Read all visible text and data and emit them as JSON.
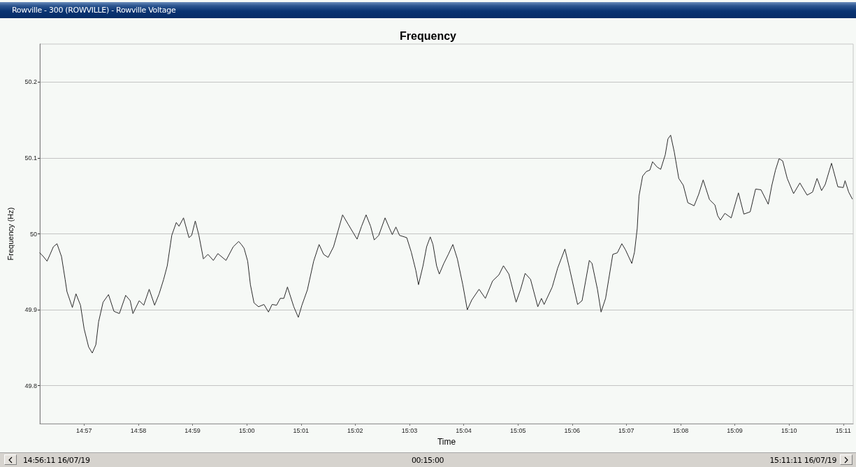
{
  "chart_data": {
    "type": "line",
    "title": "Frequency",
    "xlabel": "Time",
    "ylabel": "Frequency (Hz)",
    "annotations": [
      "Rowville - 300 (ROWVILLE) - Rowville Voltage",
      "14:56:11 16/07/19",
      "00:15:00",
      "15:11:11 16/07/19"
    ],
    "x": [
      "--07-16T14:56:11",
      "--07-16T14:56:15",
      "--07-16T14:56:19",
      "--07-16T14:56:22",
      "--07-16T14:56:26",
      "--07-16T14:56:30",
      "--07-16T14:56:35",
      "--07-16T14:56:39",
      "--07-16T14:56:41",
      "--07-16T14:56:47",
      "--07-16T14:56:51",
      "--07-16T14:56:56",
      "--07-16T14:57:00",
      "--07-16T14:57:05",
      "--07-16T14:57:09",
      "--07-16T14:57:13",
      "--07-16T14:57:16",
      "--07-16T14:57:21",
      "--07-16T14:57:27",
      "--07-16T14:57:33",
      "--07-16T14:57:39",
      "--07-16T14:57:46",
      "--07-16T14:57:51",
      "--07-16T14:57:54",
      "--07-16T14:58:01",
      "--07-16T14:58:06",
      "--07-16T14:58:12",
      "--07-16T14:58:18",
      "--07-16T14:58:23",
      "--07-16T14:58:28",
      "--07-16T14:58:32",
      "--07-16T14:58:37",
      "--07-16T14:58:42",
      "--07-16T14:58:45",
      "--07-16T14:58:50",
      "--07-16T14:58:56",
      "--07-16T14:58:59",
      "--07-16T14:59:03",
      "--07-16T14:59:07",
      "--07-16T14:59:12",
      "--07-16T14:59:17",
      "--07-16T14:59:23",
      "--07-16T14:59:28",
      "--07-16T14:59:37",
      "--07-16T14:59:45",
      "--07-16T14:59:51",
      "--07-16T14:59:54",
      "--07-16T14:59:57",
      "--07-16T15:00:01",
      "--07-16T15:00:04",
      "--07-16T15:00:08",
      "--07-16T15:00:13",
      "--07-16T15:00:19",
      "--07-16T15:00:24",
      "--07-16T15:00:28",
      "--07-16T15:00:33",
      "--07-16T15:00:37",
      "--07-16T15:00:41",
      "--07-16T15:00:45",
      "--07-16T15:00:52",
      "--07-16T15:00:57",
      "--07-16T15:01:01",
      "--07-16T15:01:07",
      "--07-16T15:01:14",
      "--07-16T15:01:20",
      "--07-16T15:01:25",
      "--07-16T15:01:30",
      "--07-16T15:01:36",
      "--07-16T15:01:41",
      "--07-16T15:01:46",
      "--07-16T15:01:52",
      "--07-16T15:01:58",
      "--07-16T15:02:02",
      "--07-16T15:02:07",
      "--07-16T15:02:12",
      "--07-16T15:02:17",
      "--07-16T15:02:21",
      "--07-16T15:02:26",
      "--07-16T15:02:33",
      "--07-16T15:02:38",
      "--07-16T15:02:41",
      "--07-16T15:02:45",
      "--07-16T15:02:49",
      "--07-16T15:02:57",
      "--07-16T15:03:02",
      "--07-16T15:03:07",
      "--07-16T15:03:10",
      "--07-16T15:03:15",
      "--07-16T15:03:19",
      "--07-16T15:03:23",
      "--07-16T15:03:26",
      "--07-16T15:03:30",
      "--07-16T15:03:33",
      "--07-16T15:03:38",
      "--07-16T15:03:43",
      "--07-16T15:03:48",
      "--07-16T15:03:53",
      "--07-16T15:03:59",
      "--07-16T15:04:04",
      "--07-16T15:04:09",
      "--07-16T15:04:17",
      "--07-16T15:04:24",
      "--07-16T15:04:32",
      "--07-16T15:04:39",
      "--07-16T15:04:44",
      "--07-16T15:04:50",
      "--07-16T15:04:58",
      "--07-16T15:05:03",
      "--07-16T15:05:08",
      "--07-16T15:05:14",
      "--07-16T15:05:22",
      "--07-16T15:05:26",
      "--07-16T15:05:29",
      "--07-16T15:05:38",
      "--07-16T15:05:44",
      "--07-16T15:05:52",
      "--07-16T15:05:57",
      "--07-16T15:06:06",
      "--07-16T15:06:11",
      "--07-16T15:06:19",
      "--07-16T15:06:22",
      "--07-16T15:06:28",
      "--07-16T15:06:32",
      "--07-16T15:06:37",
      "--07-16T15:06:45",
      "--07-16T15:06:50",
      "--07-16T15:06:55",
      "--07-16T15:06:59",
      "--07-16T15:07:06",
      "--07-16T15:07:09",
      "--07-16T15:07:12",
      "--07-16T15:07:14",
      "--07-16T15:07:18",
      "--07-16T15:07:22",
      "--07-16T15:07:26",
      "--07-16T15:07:29",
      "--07-16T15:07:34",
      "--07-16T15:07:38",
      "--07-16T15:07:43",
      "--07-16T15:07:46",
      "--07-16T15:07:49",
      "--07-16T15:07:53",
      "--07-16T15:07:58",
      "--07-16T15:08:03",
      "--07-16T15:08:08",
      "--07-16T15:08:15",
      "--07-16T15:08:20",
      "--07-16T15:08:25",
      "--07-16T15:08:32",
      "--07-16T15:08:38",
      "--07-16T15:08:41",
      "--07-16T15:08:44",
      "--07-16T15:08:49",
      "--07-16T15:08:56",
      "--07-16T15:09:04",
      "--07-16T15:09:10",
      "--07-16T15:09:17",
      "--07-16T15:09:23",
      "--07-16T15:09:29",
      "--07-16T15:09:37",
      "--07-16T15:09:41",
      "--07-16T15:09:45",
      "--07-16T15:09:49",
      "--07-16T15:09:53",
      "--07-16T15:09:58",
      "--07-16T15:10:05",
      "--07-16T15:10:12",
      "--07-16T15:10:20",
      "--07-16T15:10:26",
      "--07-16T15:10:31",
      "--07-16T15:10:36",
      "--07-16T15:10:40",
      "--07-16T15:10:47",
      "--07-16T15:10:54",
      "--07-16T15:11:00",
      "--07-16T15:11:02",
      "--07-16T15:11:06",
      "--07-16T15:11:10"
    ],
    "series": [
      {
        "color": "#2b2b2b",
        "values": [
          49.975,
          49.97,
          49.964,
          49.972,
          49.983,
          49.987,
          49.97,
          49.94,
          49.924,
          49.903,
          49.921,
          49.906,
          49.875,
          49.851,
          49.843,
          49.854,
          49.884,
          49.91,
          49.92,
          49.898,
          49.895,
          49.919,
          49.912,
          49.895,
          49.912,
          49.906,
          49.927,
          49.906,
          49.921,
          49.94,
          49.958,
          49.998,
          50.015,
          50.01,
          50.021,
          49.995,
          49.998,
          50.017,
          49.998,
          49.967,
          49.973,
          49.965,
          49.974,
          49.965,
          49.983,
          49.99,
          49.986,
          49.981,
          49.964,
          49.933,
          49.909,
          49.904,
          49.907,
          49.897,
          49.907,
          49.906,
          49.915,
          49.915,
          49.93,
          49.904,
          49.89,
          49.906,
          49.926,
          49.964,
          49.986,
          49.973,
          49.969,
          49.983,
          50.004,
          50.025,
          50.013,
          50.001,
          49.993,
          50.01,
          50.025,
          50.01,
          49.992,
          49.998,
          50.021,
          50.007,
          49.999,
          50.009,
          49.998,
          49.995,
          49.976,
          49.952,
          49.933,
          49.958,
          49.983,
          49.996,
          49.986,
          49.958,
          49.947,
          49.961,
          49.973,
          49.986,
          49.967,
          49.933,
          49.9,
          49.913,
          49.927,
          49.915,
          49.938,
          49.946,
          49.958,
          49.947,
          49.91,
          49.927,
          49.948,
          49.94,
          49.904,
          49.915,
          49.907,
          49.93,
          49.955,
          49.98,
          49.955,
          49.907,
          49.912,
          49.965,
          49.961,
          49.927,
          49.897,
          49.915,
          49.973,
          49.975,
          49.987,
          49.979,
          49.961,
          49.976,
          50.007,
          50.05,
          50.076,
          50.082,
          50.084,
          50.095,
          50.088,
          50.085,
          50.104,
          50.125,
          50.13,
          50.108,
          50.073,
          50.064,
          50.041,
          50.037,
          50.052,
          50.071,
          50.045,
          50.038,
          50.024,
          50.018,
          50.027,
          50.021,
          50.054,
          50.026,
          50.029,
          50.059,
          50.058,
          50.039,
          50.064,
          50.084,
          50.099,
          50.096,
          50.073,
          50.053,
          50.067,
          50.051,
          50.055,
          50.073,
          50.057,
          50.065,
          50.093,
          50.062,
          50.061,
          50.07,
          50.055,
          50.046
        ]
      }
    ],
    "xlim": [
      "--07-16T14:56:11",
      "--07-16T15:11:11"
    ],
    "xticks": [
      {
        "value": "--07-16T14:57",
        "label": "14:57"
      },
      {
        "value": "--07-16T14:58",
        "label": "14:58"
      },
      {
        "value": "--07-16T14:59",
        "label": "14:59"
      },
      {
        "value": "--07-16T15:00",
        "label": "15:00"
      },
      {
        "value": "--07-16T15:01",
        "label": "15:01"
      },
      {
        "value": "--07-16T15:02",
        "label": "15:02"
      },
      {
        "value": "--07-16T15:03",
        "label": "15:03"
      },
      {
        "value": "--07-16T15:04",
        "label": "15:04"
      },
      {
        "value": "--07-16T15:05",
        "label": "15:05"
      },
      {
        "value": "--07-16T15:06",
        "label": "15:06"
      },
      {
        "value": "--07-16T15:07",
        "label": "15:07"
      },
      {
        "value": "--07-16T15:08",
        "label": "15:08"
      },
      {
        "value": "--07-16T15:09",
        "label": "15:09"
      },
      {
        "value": "--07-16T15:10",
        "label": "15:10"
      },
      {
        "value": "--07-16T15:11",
        "label": "15:11"
      }
    ],
    "ylim": [
      49.75,
      50.25
    ],
    "yticks": [
      49.8,
      49.9,
      50,
      50.1,
      50.2
    ],
    "grid": "y",
    "marker": "none",
    "line_style": "solid"
  }
}
